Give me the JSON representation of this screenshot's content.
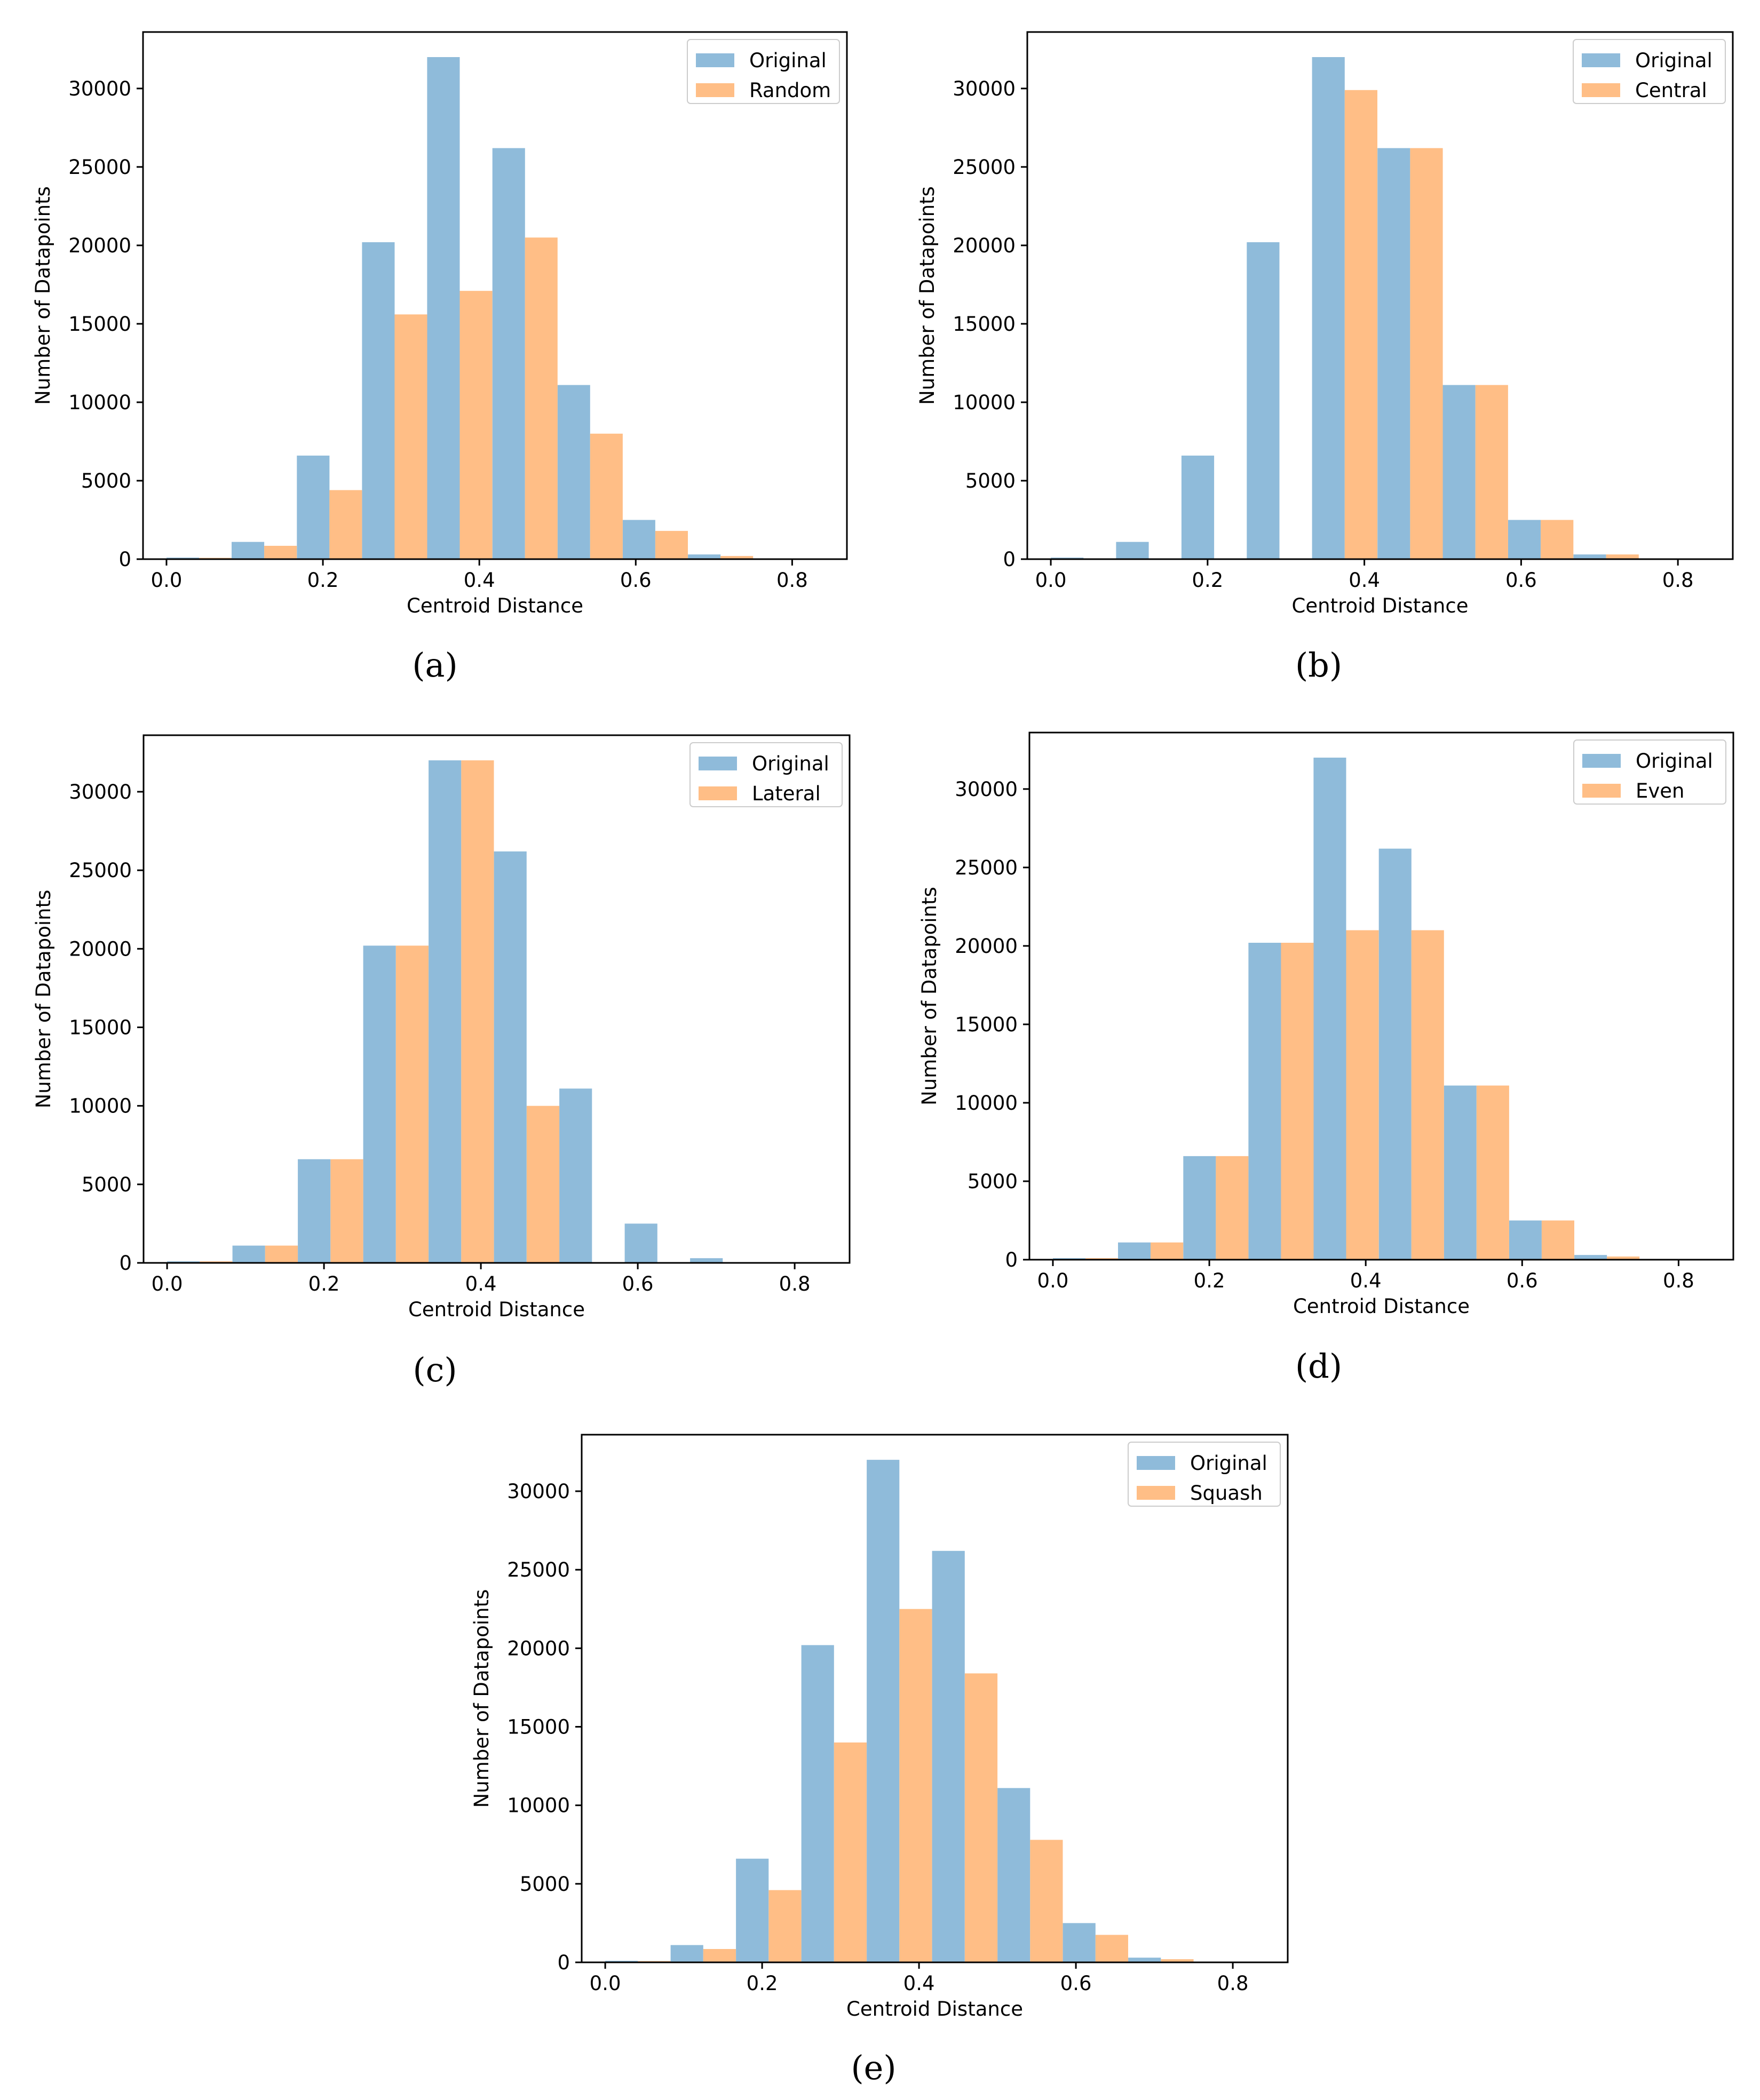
{
  "colors": {
    "original": "#8fbbda",
    "variant": "#ffbe86"
  },
  "chart_data": [
    {
      "id": "a",
      "type": "bar",
      "caption": "(a)",
      "xlabel": "Centroid Distance",
      "ylabel": "Number of Datapoints",
      "xlim": [
        -0.03,
        0.87
      ],
      "ylim": [
        0,
        33600
      ],
      "xticks": [
        0.0,
        0.2,
        0.4,
        0.6,
        0.8
      ],
      "xtick_labels": [
        "0.0",
        "0.2",
        "0.4",
        "0.6",
        "0.8"
      ],
      "yticks": [
        0,
        5000,
        10000,
        15000,
        20000,
        25000,
        30000
      ],
      "ytick_labels": [
        "0",
        "5000",
        "10000",
        "15000",
        "20000",
        "25000",
        "30000"
      ],
      "legend_position": "upper-right",
      "categories": [
        0.0,
        0.0833,
        0.1667,
        0.25,
        0.3333,
        0.4167,
        0.5,
        0.5833,
        0.6667,
        0.75
      ],
      "series": [
        {
          "name": "Original",
          "values": [
            100,
            1100,
            6600,
            20200,
            32000,
            26200,
            11100,
            2500,
            300,
            20
          ]
        },
        {
          "name": "Random",
          "values": [
            80,
            850,
            4400,
            15600,
            17100,
            20500,
            8000,
            1800,
            200,
            10
          ]
        }
      ]
    },
    {
      "id": "b",
      "type": "bar",
      "caption": "(b)",
      "xlabel": "Centroid Distance",
      "ylabel": "Number of Datapoints",
      "xlim": [
        -0.03,
        0.87
      ],
      "ylim": [
        0,
        33600
      ],
      "xticks": [
        0.0,
        0.2,
        0.4,
        0.6,
        0.8
      ],
      "xtick_labels": [
        "0.0",
        "0.2",
        "0.4",
        "0.6",
        "0.8"
      ],
      "yticks": [
        0,
        5000,
        10000,
        15000,
        20000,
        25000,
        30000
      ],
      "ytick_labels": [
        "0",
        "5000",
        "10000",
        "15000",
        "20000",
        "25000",
        "30000"
      ],
      "legend_position": "upper-right",
      "categories": [
        0.0,
        0.0833,
        0.1667,
        0.25,
        0.3333,
        0.4167,
        0.5,
        0.5833,
        0.6667,
        0.75
      ],
      "series": [
        {
          "name": "Original",
          "values": [
            100,
            1100,
            6600,
            20200,
            32000,
            26200,
            11100,
            2500,
            300,
            20
          ]
        },
        {
          "name": "Central",
          "values": [
            0,
            0,
            0,
            0,
            29900,
            26200,
            11100,
            2500,
            300,
            20
          ]
        }
      ]
    },
    {
      "id": "c",
      "type": "bar",
      "caption": "(c)",
      "xlabel": "Centroid Distance",
      "ylabel": "Number of Datapoints",
      "xlim": [
        -0.03,
        0.87
      ],
      "ylim": [
        0,
        33600
      ],
      "xticks": [
        0.0,
        0.2,
        0.4,
        0.6,
        0.8
      ],
      "xtick_labels": [
        "0.0",
        "0.2",
        "0.4",
        "0.6",
        "0.8"
      ],
      "yticks": [
        0,
        5000,
        10000,
        15000,
        20000,
        25000,
        30000
      ],
      "ytick_labels": [
        "0",
        "5000",
        "10000",
        "15000",
        "20000",
        "25000",
        "30000"
      ],
      "legend_position": "upper-right",
      "categories": [
        0.0,
        0.0833,
        0.1667,
        0.25,
        0.3333,
        0.4167,
        0.5,
        0.5833,
        0.6667,
        0.75
      ],
      "series": [
        {
          "name": "Original",
          "values": [
            100,
            1100,
            6600,
            20200,
            32000,
            26200,
            11100,
            2500,
            300,
            20
          ]
        },
        {
          "name": "Lateral",
          "values": [
            100,
            1100,
            6600,
            20200,
            32000,
            10000,
            0,
            0,
            0,
            0
          ]
        }
      ]
    },
    {
      "id": "d",
      "type": "bar",
      "caption": "(d)",
      "xlabel": "Centroid Distance",
      "ylabel": "Number of Datapoints",
      "xlim": [
        -0.03,
        0.87
      ],
      "ylim": [
        0,
        33600
      ],
      "xticks": [
        0.0,
        0.2,
        0.4,
        0.6,
        0.8
      ],
      "xtick_labels": [
        "0.0",
        "0.2",
        "0.4",
        "0.6",
        "0.8"
      ],
      "yticks": [
        0,
        5000,
        10000,
        15000,
        20000,
        25000,
        30000
      ],
      "ytick_labels": [
        "0",
        "5000",
        "10000",
        "15000",
        "20000",
        "25000",
        "30000"
      ],
      "legend_position": "upper-right",
      "categories": [
        0.0,
        0.0833,
        0.1667,
        0.25,
        0.3333,
        0.4167,
        0.5,
        0.5833,
        0.6667,
        0.75
      ],
      "series": [
        {
          "name": "Original",
          "values": [
            100,
            1100,
            6600,
            20200,
            32000,
            26200,
            11100,
            2500,
            300,
            20
          ]
        },
        {
          "name": "Even",
          "values": [
            100,
            1100,
            6600,
            20200,
            21000,
            21000,
            11100,
            2500,
            200,
            10
          ]
        }
      ]
    },
    {
      "id": "e",
      "type": "bar",
      "caption": "(e)",
      "xlabel": "Centroid Distance",
      "ylabel": "Number of Datapoints",
      "xlim": [
        -0.03,
        0.87
      ],
      "ylim": [
        0,
        33600
      ],
      "xticks": [
        0.0,
        0.2,
        0.4,
        0.6,
        0.8
      ],
      "xtick_labels": [
        "0.0",
        "0.2",
        "0.4",
        "0.6",
        "0.8"
      ],
      "yticks": [
        0,
        5000,
        10000,
        15000,
        20000,
        25000,
        30000
      ],
      "ytick_labels": [
        "0",
        "5000",
        "10000",
        "15000",
        "20000",
        "25000",
        "30000"
      ],
      "legend_position": "upper-right",
      "categories": [
        0.0,
        0.0833,
        0.1667,
        0.25,
        0.3333,
        0.4167,
        0.5,
        0.5833,
        0.6667,
        0.75
      ],
      "series": [
        {
          "name": "Original",
          "values": [
            100,
            1100,
            6600,
            20200,
            32000,
            26200,
            11100,
            2500,
            300,
            20
          ]
        },
        {
          "name": "Squash",
          "values": [
            80,
            850,
            4600,
            14000,
            22500,
            18400,
            7800,
            1750,
            200,
            10
          ]
        }
      ]
    }
  ]
}
